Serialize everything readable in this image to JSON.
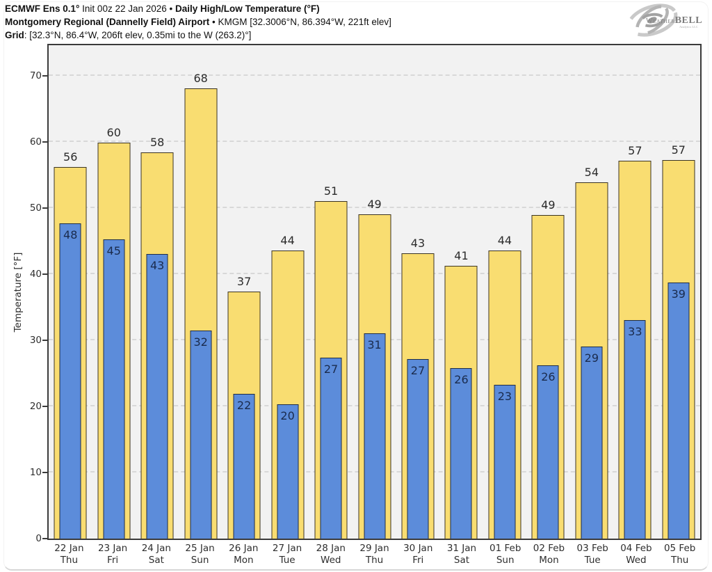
{
  "header": {
    "line1": {
      "model": "ECMWF Ens 0.1°",
      "init": " Init 00z 22 Jan 2026 • ",
      "title": "Daily High/Low Temperature (°F)"
    },
    "line2": {
      "station": "Montgomery Regional (Dannelly Field) Airport",
      "sep": " • ",
      "meta": "KMGM [32.3006°N, 86.394°W, 221ft elev]"
    },
    "line3": {
      "label": "Grid",
      "value": ": [32.3°N, 86.4°W, 206ft elev, 0.35mi to the W (263.2)°]"
    }
  },
  "logo": {
    "weather": "Weather",
    "bell": "BELL",
    "subtitle": "Analytics LLC"
  },
  "chart_data": {
    "type": "bar",
    "title": "Daily High/Low Temperature (°F)",
    "ylabel": "Temperature [°F]",
    "ylim": [
      0,
      74.5
    ],
    "yticks": [
      0,
      10,
      20,
      30,
      40,
      50,
      60,
      70
    ],
    "grid": "horizontal-dashed",
    "legend": "none",
    "categories": [
      {
        "date": "22 Jan",
        "day": "Thu"
      },
      {
        "date": "23 Jan",
        "day": "Fri"
      },
      {
        "date": "24 Jan",
        "day": "Sat"
      },
      {
        "date": "25 Jan",
        "day": "Sun"
      },
      {
        "date": "26 Jan",
        "day": "Mon"
      },
      {
        "date": "27 Jan",
        "day": "Tue"
      },
      {
        "date": "28 Jan",
        "day": "Wed"
      },
      {
        "date": "29 Jan",
        "day": "Thu"
      },
      {
        "date": "30 Jan",
        "day": "Fri"
      },
      {
        "date": "31 Jan",
        "day": "Sat"
      },
      {
        "date": "01 Feb",
        "day": "Sun"
      },
      {
        "date": "02 Feb",
        "day": "Mon"
      },
      {
        "date": "03 Feb",
        "day": "Tue"
      },
      {
        "date": "04 Feb",
        "day": "Wed"
      },
      {
        "date": "05 Feb",
        "day": "Thu"
      }
    ],
    "series": [
      {
        "name": "High",
        "values": [
          56,
          60,
          58,
          68,
          37,
          44,
          51,
          49,
          43,
          41,
          44,
          49,
          54,
          57,
          57
        ],
        "color": "#f9dd71"
      },
      {
        "name": "Low",
        "values": [
          48,
          45,
          43,
          32,
          22,
          20,
          27,
          31,
          27,
          26,
          23,
          26,
          29,
          33,
          39
        ],
        "color": "#5c8cda"
      }
    ],
    "bar_tops_estimated": {
      "high": [
        56.2,
        59.9,
        58.4,
        68.1,
        37.4,
        43.6,
        51.1,
        49.0,
        43.2,
        41.3,
        43.6,
        48.9,
        53.9,
        57.2,
        57.3
      ],
      "low": [
        47.7,
        45.3,
        43.0,
        31.5,
        21.9,
        20.3,
        27.4,
        31.0,
        27.2,
        25.8,
        23.3,
        26.2,
        29.0,
        33.0,
        38.7
      ]
    },
    "colors": {
      "high_fill": "#f9dd71",
      "high_border": "#3a3322",
      "low_fill": "#5c8cda",
      "low_border": "#1e2c45",
      "plot_bg": "#f2f2f2",
      "grid": "#d8d8d8",
      "frame": "#3b3b3b",
      "high_label": "#2b2b2b",
      "low_label": "#1a2b4d",
      "axis_text": "#2e2e2e"
    }
  }
}
